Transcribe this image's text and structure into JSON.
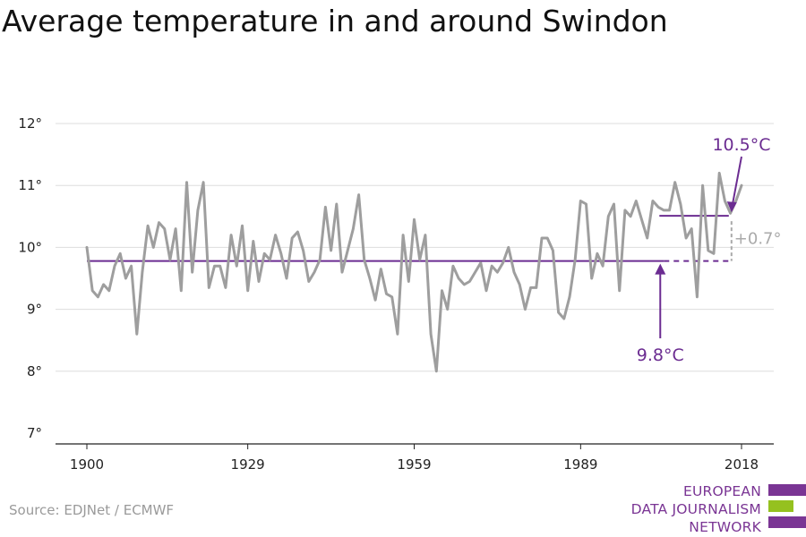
{
  "title": "Average temperature in and around Swindon",
  "source": "Source: EDJNet / ECMWF",
  "logo": {
    "lines": [
      "EUROPEAN",
      "DATA JOURNALISM",
      "NETWORK"
    ]
  },
  "colors": {
    "series": "#9e9e9e",
    "accent": "#6b2c91",
    "grid": "#dddddd",
    "axis": "#222222",
    "logo_green": "#95c11f",
    "logo_purple": "#7a3594"
  },
  "chart_data": {
    "type": "line",
    "title": "Average temperature in and around Swindon",
    "xlabel": "",
    "ylabel": "",
    "xlim": [
      1900,
      2018
    ],
    "ylim": [
      7,
      12
    ],
    "x_ticks": [
      1900,
      1929,
      1959,
      1989,
      2018
    ],
    "x_tick_labels": [
      "1900",
      "1929",
      "1959",
      "1989",
      "2018"
    ],
    "y_ticks": [
      7,
      8,
      9,
      10,
      11,
      12
    ],
    "y_tick_labels": [
      "7°",
      "8°",
      "9°",
      "10°",
      "11°",
      "12°"
    ],
    "grid": true,
    "series": [
      {
        "x": [
          1900,
          1901,
          1902,
          1903,
          1904,
          1905,
          1906,
          1907,
          1908,
          1909,
          1910,
          1911,
          1912,
          1913,
          1914,
          1915,
          1916,
          1917,
          1918,
          1919,
          1920,
          1921,
          1922,
          1923,
          1924,
          1925,
          1926,
          1927,
          1928,
          1929,
          1930,
          1931,
          1932,
          1933,
          1934,
          1935,
          1936,
          1937,
          1938,
          1939,
          1940,
          1941,
          1942,
          1943,
          1944,
          1945,
          1946,
          1947,
          1948,
          1949,
          1950,
          1951,
          1952,
          1953,
          1954,
          1955,
          1956,
          1957,
          1958,
          1959,
          1960,
          1961,
          1962,
          1963,
          1964,
          1965,
          1966,
          1967,
          1968,
          1969,
          1970,
          1971,
          1972,
          1973,
          1974,
          1975,
          1976,
          1977,
          1978,
          1979,
          1980,
          1981,
          1982,
          1983,
          1984,
          1985,
          1986,
          1987,
          1988,
          1989,
          1990,
          1991,
          1992,
          1993,
          1994,
          1995,
          1996,
          1997,
          1998,
          1999,
          2000,
          2001,
          2002,
          2003,
          2004,
          2005,
          2006,
          2007,
          2008,
          2009,
          2010,
          2011,
          2012,
          2013,
          2014,
          2015,
          2016,
          2017,
          2018
        ],
        "values": [
          10.0,
          9.3,
          9.2,
          9.4,
          9.3,
          9.7,
          9.9,
          9.5,
          9.7,
          8.6,
          9.6,
          10.35,
          10.0,
          10.4,
          10.3,
          9.8,
          10.3,
          9.3,
          11.05,
          9.6,
          10.6,
          11.05,
          9.35,
          9.7,
          9.7,
          9.35,
          10.2,
          9.7,
          10.35,
          9.3,
          10.1,
          9.45,
          9.9,
          9.8,
          10.2,
          9.9,
          9.5,
          10.15,
          10.25,
          9.95,
          9.45,
          9.6,
          9.8,
          10.65,
          9.95,
          10.7,
          9.6,
          9.95,
          10.3,
          10.85,
          9.8,
          9.5,
          9.15,
          9.65,
          9.25,
          9.2,
          8.6,
          10.2,
          9.45,
          10.45,
          9.8,
          10.2,
          8.6,
          8.0,
          9.3,
          9.0,
          9.7,
          9.5,
          9.4,
          9.45,
          9.6,
          9.75,
          9.3,
          9.7,
          9.6,
          9.75,
          10.0,
          9.6,
          9.4,
          9.0,
          9.35,
          9.35,
          10.15,
          10.15,
          9.95,
          8.95,
          8.85,
          9.2,
          9.8,
          10.75,
          10.7,
          9.5,
          9.9,
          9.7,
          10.5,
          10.7,
          9.3,
          10.6,
          10.5,
          10.75,
          10.45,
          10.15,
          10.75,
          10.65,
          10.6,
          10.6,
          11.05,
          10.7,
          10.15,
          10.3,
          9.2,
          11.0,
          9.95,
          9.9,
          11.2,
          10.75,
          10.55,
          10.75,
          11.0
        ]
      }
    ],
    "annotations": [
      {
        "label": "9.8°C",
        "value": 9.78,
        "x_from": 1900,
        "x_to": 2004
      },
      {
        "label": "10.5°C",
        "value": 10.51,
        "x_from": 2004,
        "x_to": 2017
      },
      {
        "label": "+0.7°"
      }
    ]
  }
}
